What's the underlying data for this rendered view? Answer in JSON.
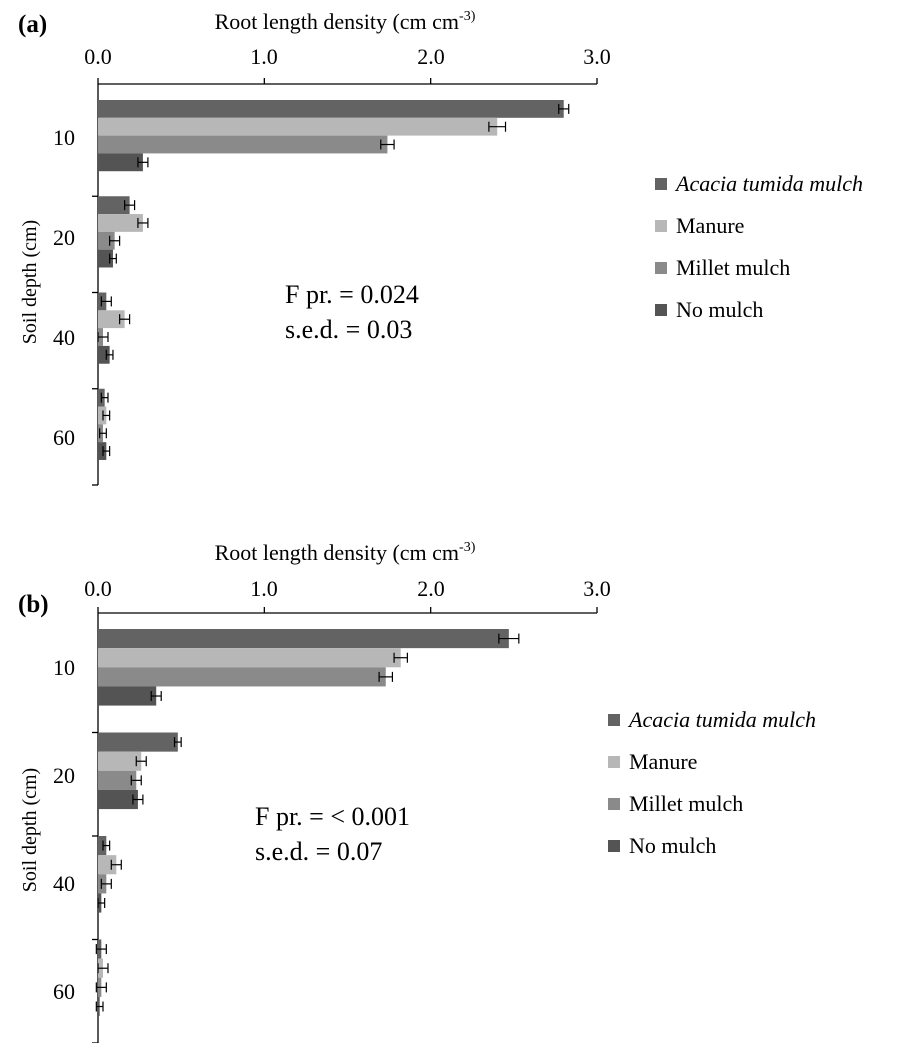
{
  "panels": [
    {
      "id": "a",
      "label": "(a)",
      "x_title": "Root length density (cm cm",
      "x_title_sup": "-3)",
      "x_ticks": [
        "0.0",
        "1.0",
        "2.0",
        "3.0"
      ],
      "y_title": "Soil depth (cm)",
      "y_ticks": [
        "10",
        "20",
        "40",
        "60"
      ],
      "stats_line1": "F pr. = 0.024",
      "stats_line2": "s.e.d. = 0.03"
    },
    {
      "id": "b",
      "label": "(b)",
      "x_title": "Root length density (cm cm",
      "x_title_sup": "-3)",
      "x_ticks": [
        "0.0",
        "1.0",
        "2.0",
        "3.0"
      ],
      "y_title": "Soil depth (cm)",
      "y_ticks": [
        "10",
        "20",
        "40",
        "60"
      ],
      "stats_line1": "F pr. = < 0.001",
      "stats_line2": "s.e.d. = 0.07"
    }
  ],
  "legend": {
    "items": [
      {
        "label": "Acacia tumida mulch",
        "color": "#636363",
        "italic": true
      },
      {
        "label": "Manure",
        "color": "#b7b7b7",
        "italic": false
      },
      {
        "label": "Millet mulch",
        "color": "#8a8a8a",
        "italic": false
      },
      {
        "label": "No mulch",
        "color": "#545454",
        "italic": false
      }
    ]
  },
  "chart_data": [
    {
      "type": "bar",
      "orientation": "horizontal",
      "title": "(a)",
      "xlabel": "Root length density (cm cm-3)",
      "ylabel": "Soil depth (cm)",
      "xlim": [
        0,
        3.0
      ],
      "x_axis_position": "top",
      "categories": [
        "10",
        "20",
        "40",
        "60"
      ],
      "series": [
        {
          "name": "Acacia tumida mulch",
          "color": "#636363",
          "values": [
            2.8,
            0.19,
            0.05,
            0.04
          ],
          "errors": [
            0.03,
            0.03,
            0.03,
            0.02
          ]
        },
        {
          "name": "Manure",
          "color": "#b7b7b7",
          "values": [
            2.4,
            0.27,
            0.16,
            0.05
          ],
          "errors": [
            0.05,
            0.03,
            0.03,
            0.02
          ]
        },
        {
          "name": "Millet mulch",
          "color": "#8a8a8a",
          "values": [
            1.74,
            0.1,
            0.03,
            0.03
          ],
          "errors": [
            0.04,
            0.03,
            0.03,
            0.02
          ]
        },
        {
          "name": "No mulch",
          "color": "#545454",
          "values": [
            0.27,
            0.09,
            0.07,
            0.05
          ],
          "errors": [
            0.03,
            0.02,
            0.02,
            0.02
          ]
        }
      ],
      "legend_position": "right",
      "grid": false,
      "annotations": [
        "F pr. = 0.024",
        "s.e.d. = 0.03"
      ]
    },
    {
      "type": "bar",
      "orientation": "horizontal",
      "title": "(b)",
      "xlabel": "Root length density (cm cm-3)",
      "ylabel": "Soil depth (cm)",
      "xlim": [
        0,
        3.0
      ],
      "x_axis_position": "top",
      "categories": [
        "10",
        "20",
        "40",
        "60"
      ],
      "series": [
        {
          "name": "Acacia tumida mulch",
          "color": "#636363",
          "values": [
            2.47,
            0.48,
            0.05,
            0.02
          ],
          "errors": [
            0.06,
            0.02,
            0.02,
            0.03
          ]
        },
        {
          "name": "Manure",
          "color": "#b7b7b7",
          "values": [
            1.82,
            0.26,
            0.11,
            0.03
          ],
          "errors": [
            0.04,
            0.03,
            0.03,
            0.03
          ]
        },
        {
          "name": "Millet mulch",
          "color": "#8a8a8a",
          "values": [
            1.73,
            0.23,
            0.05,
            0.02
          ],
          "errors": [
            0.04,
            0.03,
            0.03,
            0.03
          ]
        },
        {
          "name": "No mulch",
          "color": "#545454",
          "values": [
            0.35,
            0.24,
            0.02,
            0.01
          ],
          "errors": [
            0.03,
            0.03,
            0.02,
            0.02
          ]
        }
      ],
      "legend_position": "right",
      "grid": false,
      "annotations": [
        "F pr. = < 0.001",
        "s.e.d. = 0.07"
      ]
    }
  ]
}
